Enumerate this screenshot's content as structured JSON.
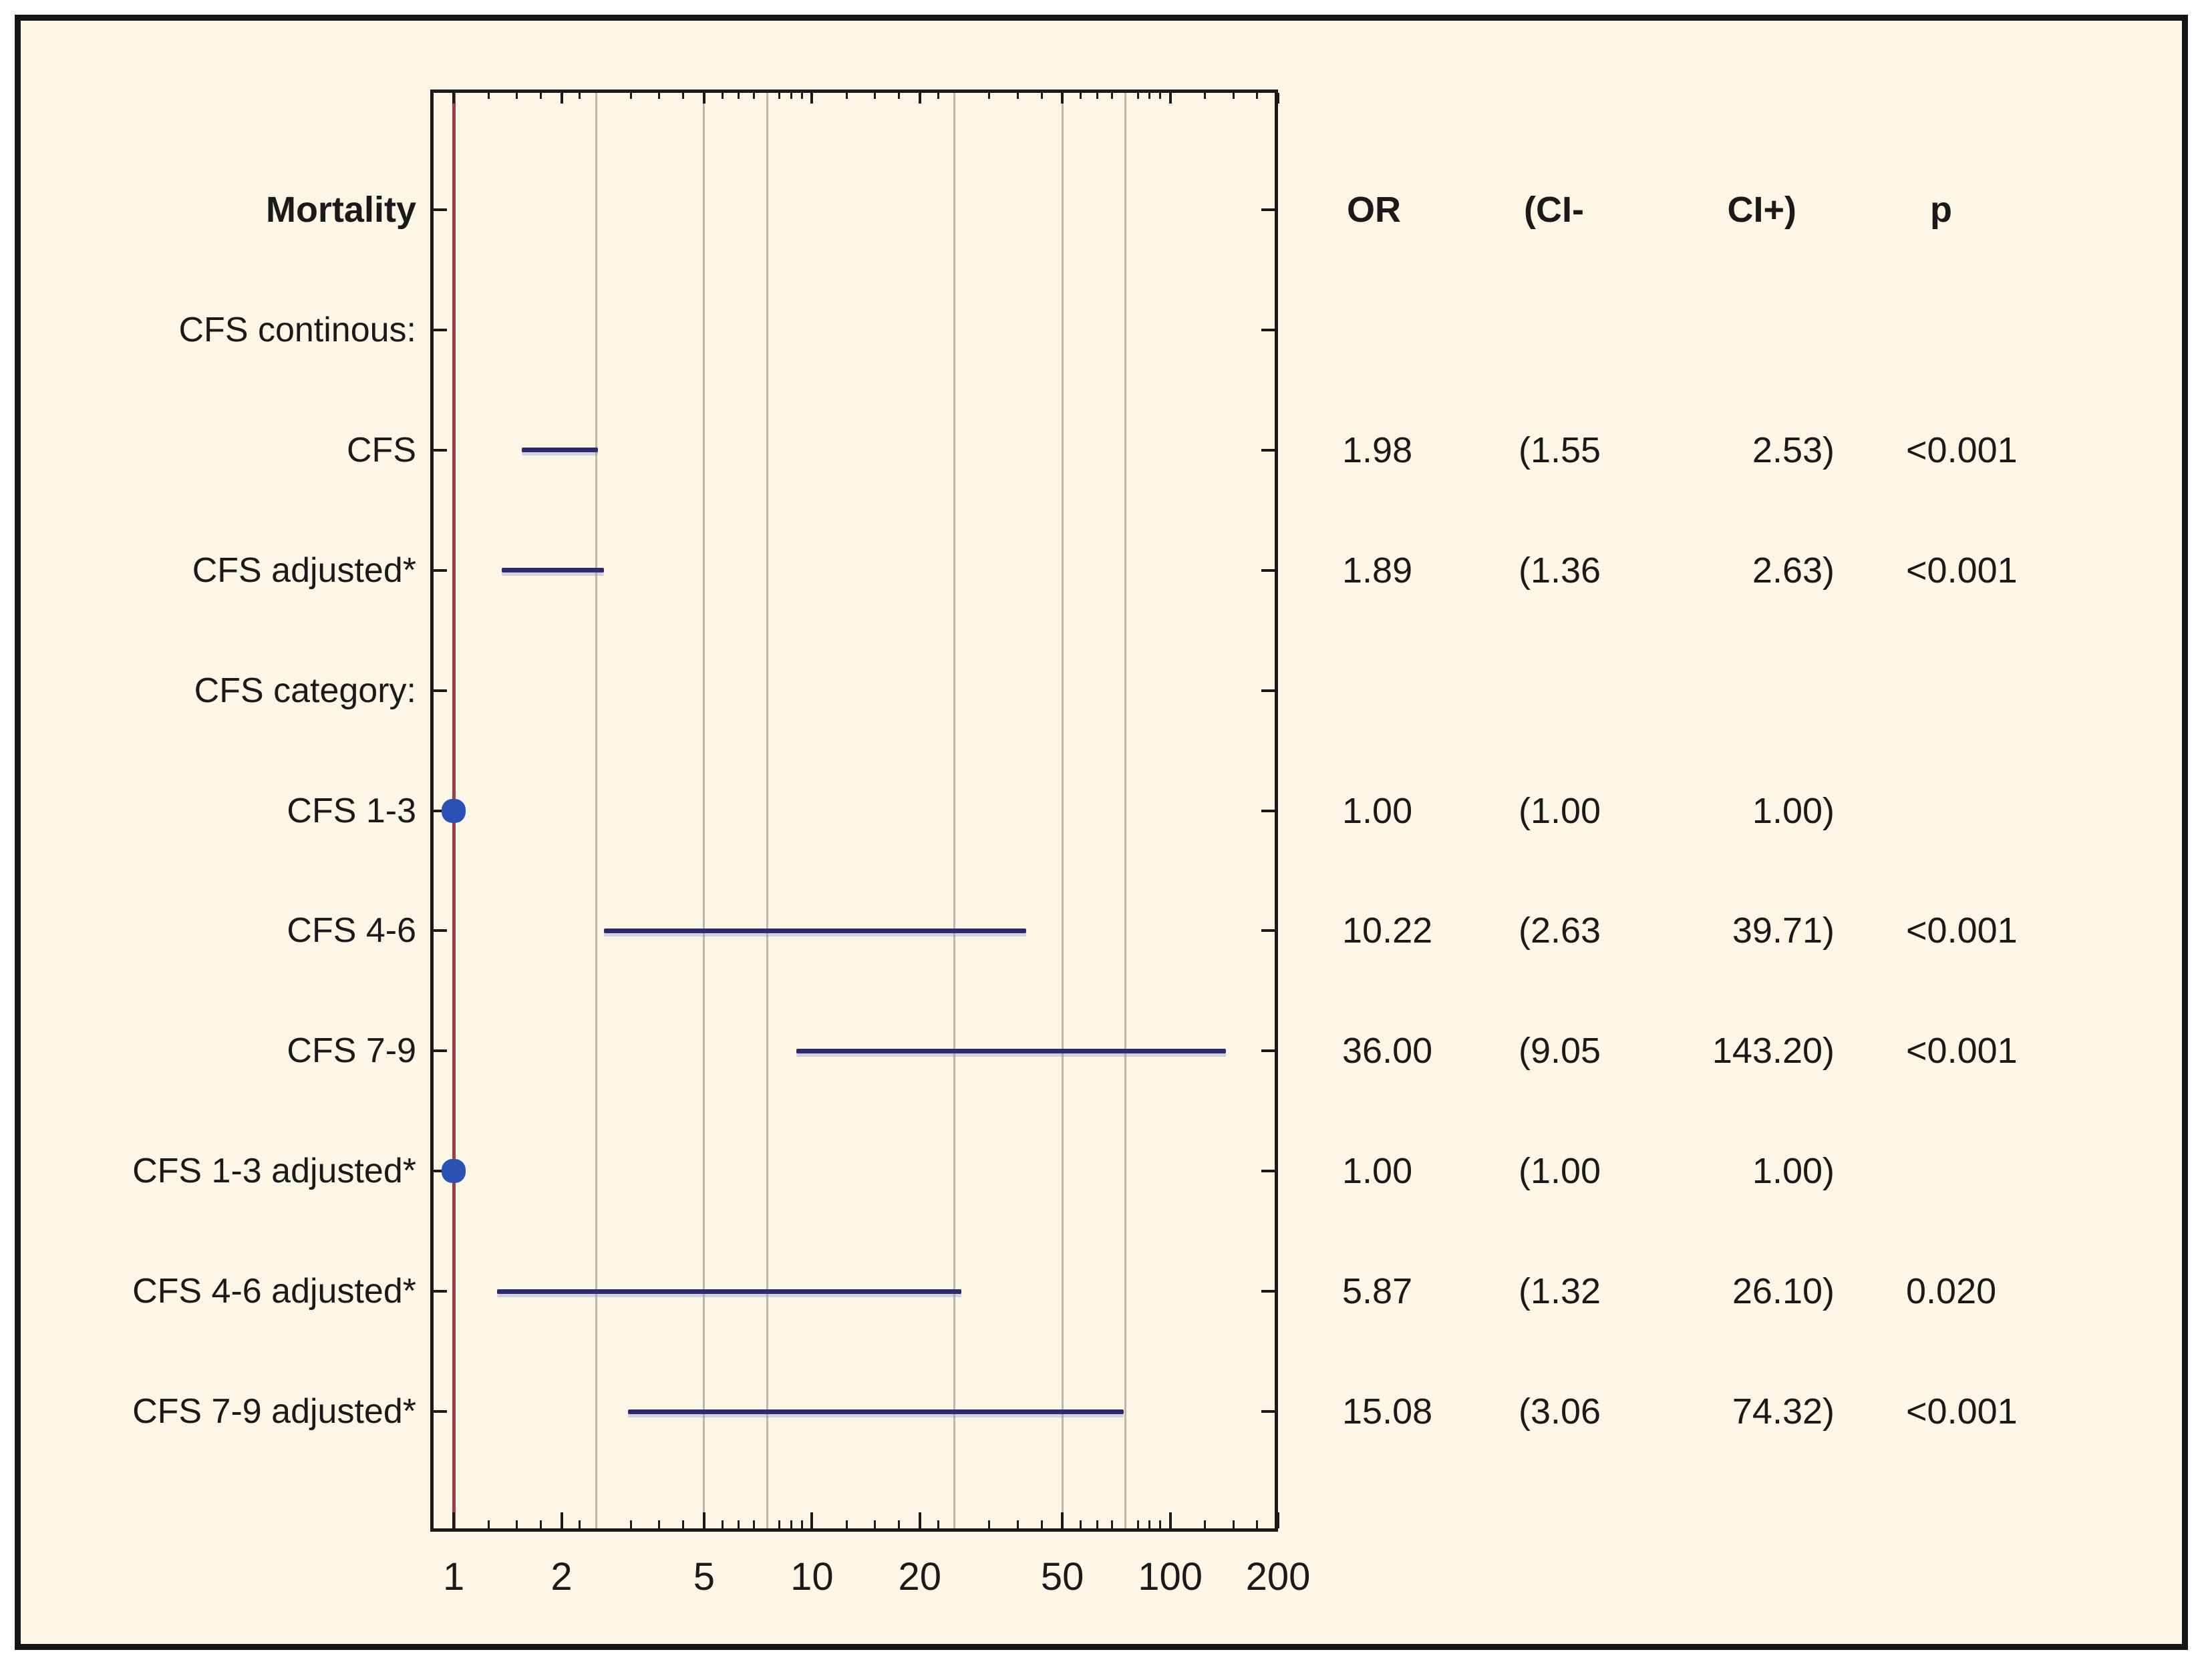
{
  "colors": {
    "page_background": "#ffffff",
    "panel_background": "#fbf6e5",
    "outer_border": "#151515",
    "frame_border": "#1a1a1a",
    "gridline": "#bcb8aa",
    "reference_line": "#9c3f4b",
    "ci_line": "#2b2b6e",
    "ci_halo": "rgba(140,140,215,0.35)",
    "marker": "#2a52b4",
    "text": "#1a1a1a"
  },
  "table_header": {
    "or": "OR",
    "ci_low": "(CI-",
    "ci_high": "CI+)",
    "p": "p"
  },
  "chart_data": {
    "type": "forest",
    "x_axis": {
      "scale": "log",
      "min": 0.86,
      "max": 200,
      "tick_values": [
        1,
        2,
        5,
        10,
        20,
        50,
        100,
        200
      ],
      "tick_labels": [
        "1",
        "2",
        "5",
        "10",
        "20",
        "50",
        "100",
        "200"
      ],
      "minor_tick_values": [
        1.25,
        1.5,
        1.75,
        2.25,
        3.125,
        3.75,
        4.375,
        5.625,
        6.25,
        6.875,
        8.125,
        8.75,
        9.375,
        12.5,
        15,
        17.5,
        22.5,
        31.25,
        37.5,
        43.75,
        56.25,
        62.5,
        68.75,
        81.25,
        87.5,
        93.75,
        125,
        150,
        175
      ],
      "gridline_values": [
        2.5,
        5,
        7.5,
        25,
        50,
        75
      ],
      "reference_line_value": 1,
      "grid": true
    },
    "rows": [
      {
        "label": "Mortality",
        "kind": "header"
      },
      {
        "label": "CFS continous:",
        "kind": "section"
      },
      {
        "label": "CFS",
        "kind": "data",
        "or": 1.98,
        "ci_low": 1.55,
        "ci_high": 2.53,
        "marker": false,
        "or_text": "1.98",
        "ci_low_text": "(1.55",
        "ci_high_text": "2.53)",
        "p_text": "<0.001"
      },
      {
        "label": "CFS adjusted*",
        "kind": "data",
        "or": 1.89,
        "ci_low": 1.36,
        "ci_high": 2.63,
        "marker": false,
        "or_text": "1.89",
        "ci_low_text": "(1.36",
        "ci_high_text": "2.63)",
        "p_text": "<0.001"
      },
      {
        "label": "CFS category:",
        "kind": "section"
      },
      {
        "label": "CFS 1-3",
        "kind": "data",
        "or": 1.0,
        "ci_low": 1.0,
        "ci_high": 1.0,
        "marker": true,
        "or_text": "1.00",
        "ci_low_text": "(1.00",
        "ci_high_text": "1.00)",
        "p_text": ""
      },
      {
        "label": "CFS 4-6",
        "kind": "data",
        "or": 10.22,
        "ci_low": 2.63,
        "ci_high": 39.71,
        "marker": false,
        "or_text": "10.22",
        "ci_low_text": "(2.63",
        "ci_high_text": "39.71)",
        "p_text": "<0.001"
      },
      {
        "label": "CFS 7-9",
        "kind": "data",
        "or": 36.0,
        "ci_low": 9.05,
        "ci_high": 143.2,
        "marker": false,
        "or_text": "36.00",
        "ci_low_text": "(9.05",
        "ci_high_text": "143.20)",
        "p_text": "<0.001"
      },
      {
        "label": "CFS 1-3 adjusted*",
        "kind": "data",
        "or": 1.0,
        "ci_low": 1.0,
        "ci_high": 1.0,
        "marker": true,
        "or_text": "1.00",
        "ci_low_text": "(1.00",
        "ci_high_text": "1.00)",
        "p_text": ""
      },
      {
        "label": "CFS 4-6 adjusted*",
        "kind": "data",
        "or": 5.87,
        "ci_low": 1.32,
        "ci_high": 26.1,
        "marker": false,
        "or_text": "5.87",
        "ci_low_text": "(1.32",
        "ci_high_text": "26.10)",
        "p_text": "0.020"
      },
      {
        "label": "CFS 7-9 adjusted*",
        "kind": "data",
        "or": 15.08,
        "ci_low": 3.06,
        "ci_high": 74.32,
        "marker": false,
        "or_text": "15.08",
        "ci_low_text": "(3.06",
        "ci_high_text": "74.32)",
        "p_text": "<0.001"
      }
    ]
  }
}
